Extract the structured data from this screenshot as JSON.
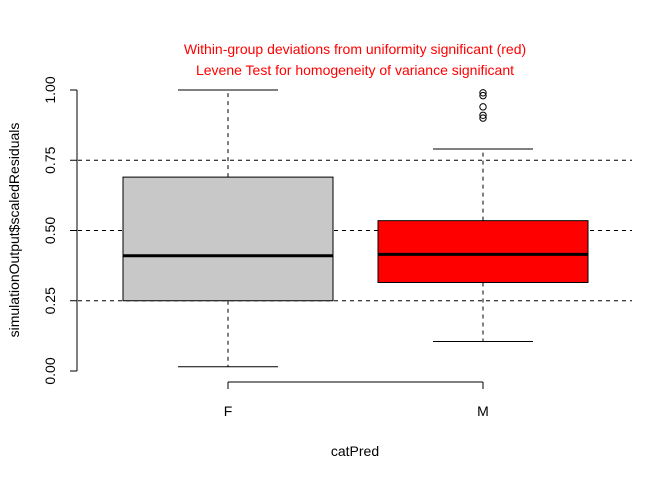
{
  "chart_data": {
    "type": "boxplot",
    "title": "Within-group deviations from uniformity significant (red)",
    "subtitle": "Levene Test for homogeneity of variance significant",
    "title_color": "#ff0000",
    "xlabel": "catPred",
    "ylabel": "simulationOutput$scaledResiduals",
    "ylim": [
      0,
      1
    ],
    "yticks": [
      "0.00",
      "0.25",
      "0.50",
      "0.75",
      "1.00"
    ],
    "reference_lines": [
      0.25,
      0.5,
      0.75
    ],
    "groups": [
      {
        "label": "F",
        "whisker_low": 0.015,
        "q1": 0.25,
        "median": 0.41,
        "q3": 0.69,
        "whisker_high": 1.0,
        "outliers": [],
        "fill": "#c8c8c8"
      },
      {
        "label": "M",
        "whisker_low": 0.105,
        "q1": 0.315,
        "median": 0.415,
        "q3": 0.535,
        "whisker_high": 0.79,
        "outliers": [
          0.9,
          0.91,
          0.94,
          0.98,
          0.99
        ],
        "fill": "#ff0000"
      }
    ]
  }
}
